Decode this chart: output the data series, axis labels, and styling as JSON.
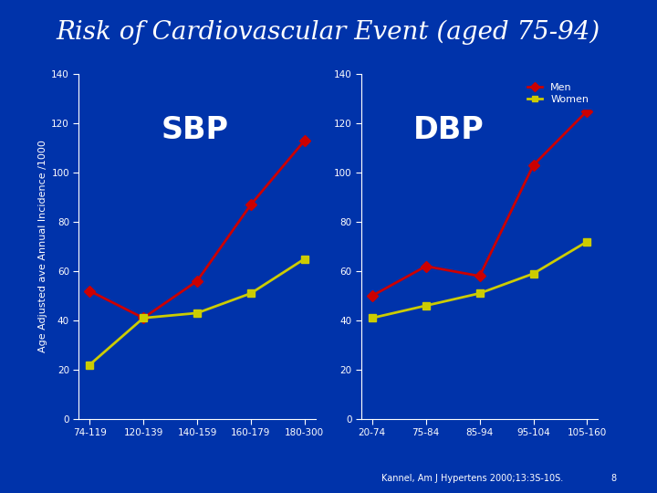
{
  "title": "Risk of Cardiovascular Event (aged 75-94)",
  "title_fontsize": 20,
  "title_color": "#ffffff",
  "background_color": "#0033AA",
  "ylabel": "Age Adjusted ave Annual Incidence /1000",
  "ylabel_fontsize": 8,
  "ylabel_color": "#ffffff",
  "tick_color": "#ffffff",
  "tick_fontsize": 7.5,
  "sbp_label": "SBP",
  "dbp_label": "DBP",
  "sbp_categories": [
    "74-119",
    "120-139",
    "140-159",
    "160-179",
    "180-300"
  ],
  "dbp_categories": [
    "20-74",
    "75-84",
    "85-94",
    "95-104",
    "105-160"
  ],
  "sbp_men": [
    52,
    41,
    56,
    87,
    113
  ],
  "sbp_women": [
    22,
    41,
    43,
    51,
    65
  ],
  "dbp_men": [
    50,
    62,
    58,
    103,
    125
  ],
  "dbp_women": [
    41,
    46,
    51,
    59,
    72
  ],
  "men_color": "#cc0000",
  "women_color": "#cccc00",
  "ylim": [
    0,
    140
  ],
  "yticks": [
    0,
    20,
    40,
    60,
    80,
    100,
    120,
    140
  ],
  "legend_men": "Men",
  "legend_women": "Women",
  "source_text": "Kannel, Am J Hypertens 2000;13:3S-10S.",
  "source_page": "8",
  "line_width": 2,
  "marker_size": 6
}
